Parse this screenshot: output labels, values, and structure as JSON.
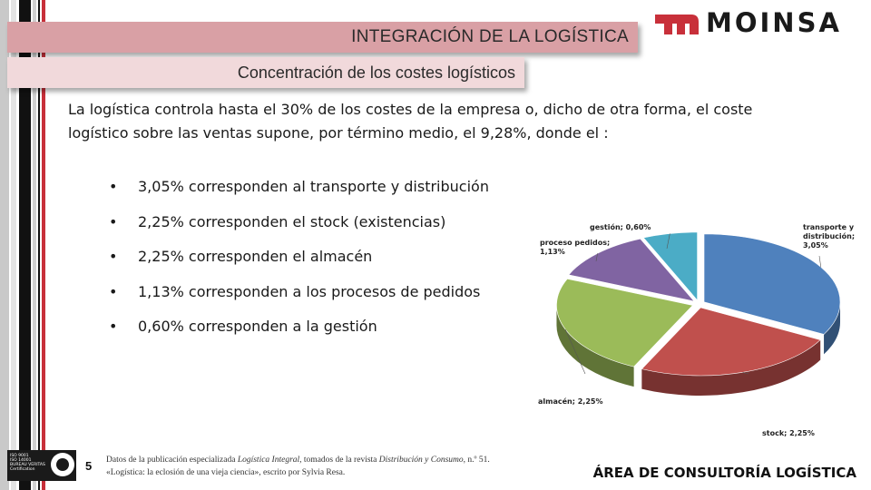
{
  "header": {
    "title": "INTEGRACIÓN DE LA LOGÍSTICA",
    "subtitle": "Concentración de los costes logísticos"
  },
  "logo": {
    "text": "MOINSA",
    "mark_color": "#c8303a"
  },
  "intro": "La logística controla hasta el 30% de los costes de la empresa o, dicho de otra forma, el coste logístico sobre las ventas supone, por término medio, el 9,28%, donde el :",
  "bullets": [
    "3,05% corresponden al transporte y distribución",
    "2,25% corresponden el stock (existencias)",
    "2,25% corresponden el almacén",
    "1,13% corresponden a los procesos de pedidos",
    "0,60% corresponden a la gestión"
  ],
  "chart_data": {
    "type": "pie",
    "title": "",
    "slices": [
      {
        "label": "transporte y distribución",
        "value": 3.05,
        "color": "#4f81bd",
        "display_lines": [
          "transporte y",
          "distribución;",
          "3,05%"
        ]
      },
      {
        "label": "stock",
        "value": 2.25,
        "color": "#c0504d",
        "display_lines": [
          "stock; 2,25%"
        ]
      },
      {
        "label": "almacén",
        "value": 2.25,
        "color": "#9bbb59",
        "display_lines": [
          "almacén; 2,25%"
        ]
      },
      {
        "label": "proceso pedidos",
        "value": 1.13,
        "color": "#8064a2",
        "display_lines": [
          "proceso pedidos;",
          "1,13%"
        ]
      },
      {
        "label": "gestión",
        "value": 0.6,
        "color": "#4bacc6",
        "display_lines": [
          "gestión; 0,60%"
        ]
      }
    ]
  },
  "footer": {
    "page_number": "5",
    "cert_lines": [
      "ISO 9001",
      "ISO 14001",
      "BUREAU VERITAS",
      "Certification"
    ],
    "source_plain_1": "Datos de la publicación especializada ",
    "source_italic_1": "Logística Integral",
    "source_plain_2": ", tomados de la revista ",
    "source_italic_2": "Distribución y Consumo",
    "source_plain_3": ", n.º 51. «Logística: la eclosión de una vieja ciencia», escrito por Sylvia Resa.",
    "area": "ÁREA DE CONSULTORÍA LOGÍSTICA"
  }
}
